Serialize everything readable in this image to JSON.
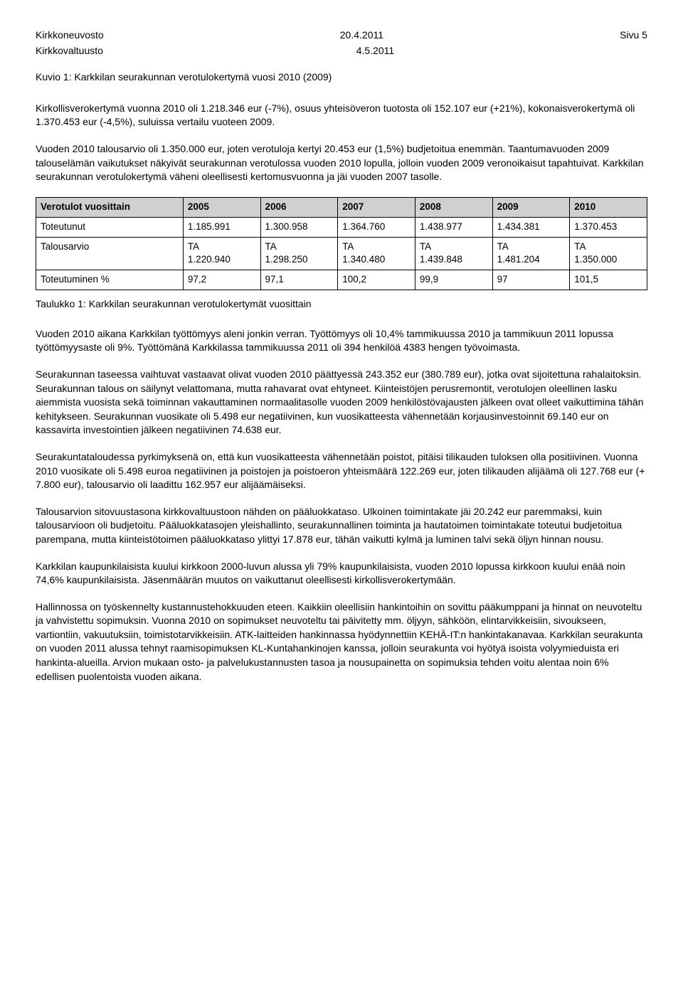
{
  "header": {
    "left1": "Kirkkoneuvosto",
    "left2": "Kirkkovaltuusto",
    "center1": "20.4.2011",
    "center2": "4.5.2011",
    "right": "Sivu 5"
  },
  "kuvio_title": "Kuvio 1: Karkkilan seurakunnan verotulokertymä vuosi 2010 (2009)",
  "para1": "Kirkollisverokertymä vuonna 2010 oli 1.218.346 eur (-7%), osuus yhteisöveron tuotosta oli 152.107 eur (+21%), kokonaisverokertymä oli 1.370.453 eur (-4,5%), suluissa vertailu vuoteen 2009.",
  "para2": "Vuoden 2010 talousarvio oli 1.350.000 eur, joten verotuloja kertyi 20.453 eur (1,5%) budjetoitua enemmän. Taantumavuoden 2009 talouselämän vaikutukset näkyivät seurakunnan verotulossa vuoden 2010 lopulla, jolloin vuoden 2009 veronoikaisut tapahtuivat. Karkkilan seurakunnan verotulokertymä väheni oleellisesti kertomusvuonna ja jäi vuoden 2007 tasolle.",
  "table": {
    "headers": [
      "Verotulot vuosittain",
      "2005",
      "2006",
      "2007",
      "2008",
      "2009",
      "2010"
    ],
    "rows": [
      [
        "Toteutunut",
        "1.185.991",
        "1.300.958",
        "1.364.760",
        "1.438.977",
        "1.434.381",
        "1.370.453"
      ],
      [
        "Talousarvio",
        "TA\n1.220.940",
        "TA\n1.298.250",
        "TA\n1.340.480",
        "TA\n1.439.848",
        "TA\n1.481.204",
        "TA\n1.350.000"
      ],
      [
        "Toteutuminen %",
        "97,2",
        "97,1",
        "100,2",
        "99,9",
        "97",
        "101,5"
      ]
    ],
    "header_bg": "#d0d0d0",
    "border_color": "#000000"
  },
  "table_caption": "Taulukko 1: Karkkilan seurakunnan verotulokertymät vuosittain",
  "para3": "Vuoden 2010 aikana Karkkilan työttömyys aleni jonkin verran. Työttömyys oli 10,4% tammikuussa 2010 ja tammikuun 2011 lopussa työttömyysaste oli 9%. Työttömänä Karkkilassa tammikuussa 2011 oli 394 henkilöä 4383 hengen työvoimasta.",
  "para4": "Seurakunnan taseessa vaihtuvat vastaavat olivat vuoden 2010 päättyessä 243.352 eur (380.789 eur), jotka ovat sijoitettuna rahalaitoksin. Seurakunnan talous on säilynyt velattomana, mutta rahavarat ovat ehtyneet. Kiinteistöjen perusremontit, verotulojen oleellinen lasku aiemmista vuosista sekä toiminnan vakauttaminen normaalitasolle vuoden 2009 henkilöstövajausten jälkeen ovat olleet vaikuttimina tähän kehitykseen. Seurakunnan vuosikate oli 5.498 eur negatiivinen, kun vuosikatteesta vähennetään korjausinvestoinnit 69.140 eur on kassavirta investointien jälkeen negatiivinen 74.638 eur.",
  "para5": "Seurakuntataloudessa pyrkimyksenä on, että kun vuosikatteesta vähennetään poistot, pitäisi tilikauden tuloksen olla positiivinen. Vuonna 2010 vuosikate oli 5.498 euroa negatiivinen ja poistojen ja poistoeron yhteismäärä 122.269 eur, joten tilikauden alijäämä oli 127.768 eur (+ 7.800 eur), talousarvio oli laadittu 162.957 eur alijäämäiseksi.",
  "para6": "Talousarvion sitovuustasona kirkkovaltuustoon nähden on pääluokkataso. Ulkoinen toimintakate jäi 20.242 eur paremmaksi, kuin talousarvioon oli budjetoitu. Pääluokkatasojen yleishallinto, seurakunnallinen toiminta ja hautatoimen toimintakate toteutui budjetoitua parempana, mutta kiinteistötoimen pääluokkataso ylittyi 17.878 eur, tähän vaikutti kylmä ja luminen talvi sekä öljyn hinnan nousu.",
  "para7": "Karkkilan kaupunkilaisista kuului kirkkoon 2000-luvun alussa yli 79% kaupunkilaisista, vuoden 2010 lopussa kirkkoon kuului enää noin 74,6% kaupunkilaisista. Jäsenmäärän muutos on vaikuttanut oleellisesti kirkollisverokertymään.",
  "para8": "Hallinnossa on työskennelty kustannustehokkuuden eteen. Kaikkiin oleellisiin hankintoihin on sovittu pääkumppani ja hinnat on neuvoteltu ja vahvistettu sopimuksin. Vuonna 2010 on sopimukset neuvoteltu tai päivitetty mm. öljyyn, sähköön, elintarvikkeisiin, sivoukseen, vartiontiin, vakuutuksiin, toimistotarvikkeisiin. ATK-laitteiden hankinnassa hyödynnettiin KEHÄ-IT:n hankintakanavaa. Karkkilan seurakunta on vuoden 2011 alussa tehnyt raamisopimuksen KL-Kuntahankinojen kanssa, jolloin seurakunta voi hyötyä isoista volyymieduista eri hankinta-alueilla. Arvion mukaan osto- ja palvelukustannusten tasoa ja nousupainetta on sopimuksia tehden voitu alentaa noin 6% edellisen puolentoista vuoden aikana."
}
